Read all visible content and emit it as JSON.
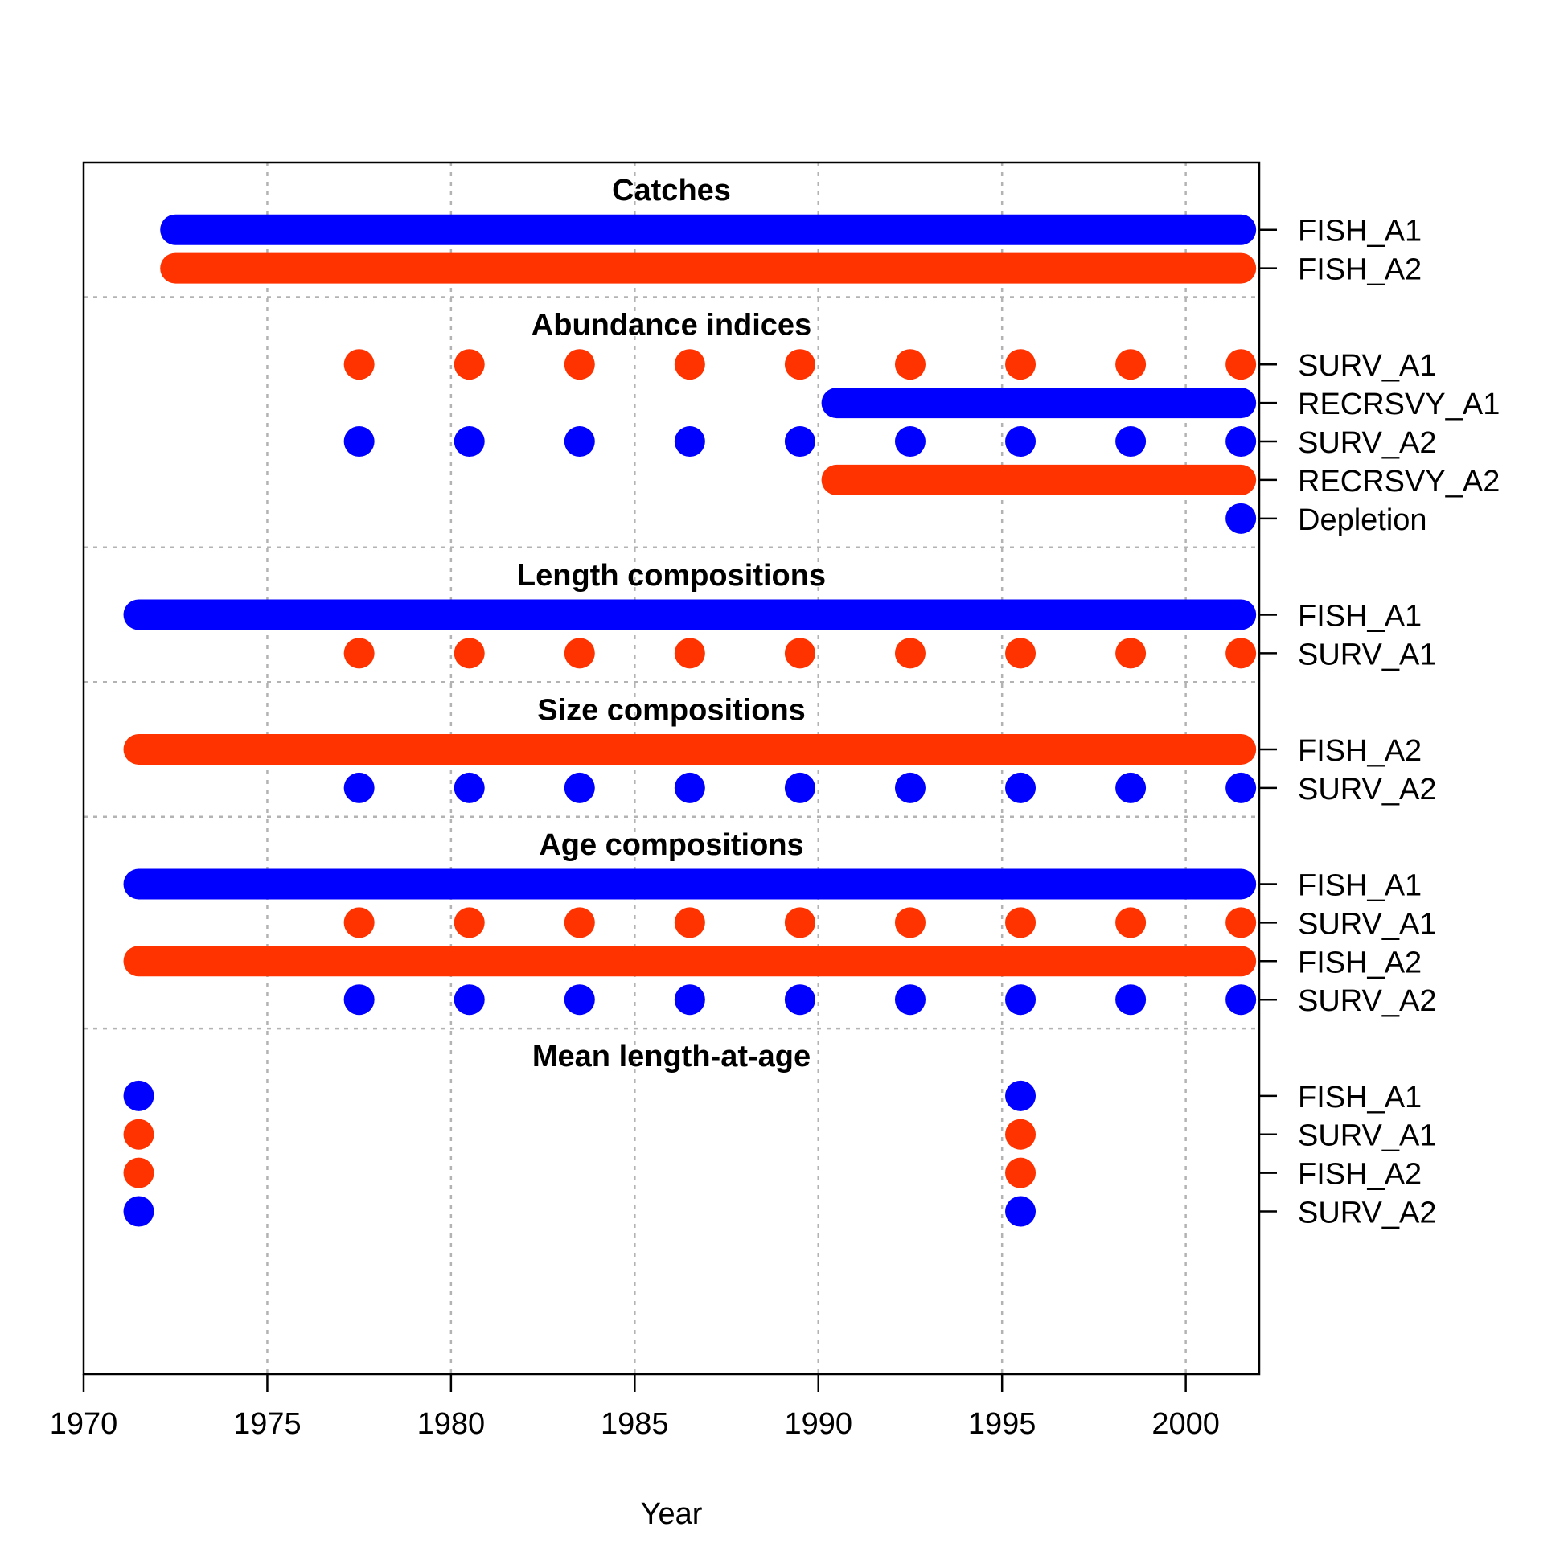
{
  "chart_data": {
    "type": "timeline",
    "xlabel": "Year",
    "xlim": [
      1970,
      2002
    ],
    "xticks": [
      1970,
      1975,
      1980,
      1985,
      1990,
      1995,
      2000
    ],
    "colors": {
      "blue": "#0000ff",
      "red": "#ff3300"
    },
    "sections": [
      {
        "title": "Catches",
        "rows": [
          {
            "label": "FISH_A1",
            "color": "blue",
            "years": [
              1972,
              1973,
              1974,
              1975,
              1976,
              1977,
              1978,
              1979,
              1980,
              1981,
              1982,
              1983,
              1984,
              1985,
              1986,
              1987,
              1988,
              1989,
              1990,
              1991,
              1992,
              1993,
              1994,
              1995,
              1996,
              1997,
              1998,
              1999,
              2000,
              2001
            ]
          },
          {
            "label": "FISH_A2",
            "color": "red",
            "years": [
              1972,
              1973,
              1974,
              1975,
              1976,
              1977,
              1978,
              1979,
              1980,
              1981,
              1982,
              1983,
              1984,
              1985,
              1986,
              1987,
              1988,
              1989,
              1990,
              1991,
              1992,
              1993,
              1994,
              1995,
              1996,
              1997,
              1998,
              1999,
              2000,
              2001
            ]
          }
        ]
      },
      {
        "title": "Abundance indices",
        "rows": [
          {
            "label": "SURV_A1",
            "color": "red",
            "years": [
              1977,
              1980,
              1983,
              1986,
              1989,
              1992,
              1995,
              1998,
              2001
            ]
          },
          {
            "label": "RECRSVY_A1",
            "color": "blue",
            "years": [
              1990,
              1991,
              1992,
              1993,
              1994,
              1995,
              1996,
              1997,
              1998,
              1999,
              2000,
              2001
            ]
          },
          {
            "label": "SURV_A2",
            "color": "blue",
            "years": [
              1977,
              1980,
              1983,
              1986,
              1989,
              1992,
              1995,
              1998,
              2001
            ]
          },
          {
            "label": "RECRSVY_A2",
            "color": "red",
            "years": [
              1990,
              1991,
              1992,
              1993,
              1994,
              1995,
              1996,
              1997,
              1998,
              1999,
              2000,
              2001
            ]
          },
          {
            "label": "Depletion",
            "color": "blue",
            "years": [
              2001
            ]
          }
        ]
      },
      {
        "title": "Length compositions",
        "rows": [
          {
            "label": "FISH_A1",
            "color": "blue",
            "years": [
              1971,
              1972,
              1973,
              1974,
              1975,
              1976,
              1977,
              1978,
              1979,
              1980,
              1981,
              1982,
              1983,
              1984,
              1985,
              1986,
              1987,
              1988,
              1989,
              1990,
              1991,
              1992,
              1993,
              1994,
              1995,
              1996,
              1997,
              1998,
              1999,
              2000,
              2001
            ]
          },
          {
            "label": "SURV_A1",
            "color": "red",
            "years": [
              1977,
              1980,
              1983,
              1986,
              1989,
              1992,
              1995,
              1998,
              2001
            ]
          }
        ]
      },
      {
        "title": "Size compositions",
        "rows": [
          {
            "label": "FISH_A2",
            "color": "red",
            "years": [
              1971,
              1972,
              1973,
              1974,
              1975,
              1976,
              1977,
              1978,
              1979,
              1980,
              1981,
              1982,
              1983,
              1984,
              1985,
              1986,
              1987,
              1988,
              1989,
              1990,
              1991,
              1992,
              1993,
              1994,
              1995,
              1996,
              1997,
              1998,
              1999,
              2000,
              2001
            ]
          },
          {
            "label": "SURV_A2",
            "color": "blue",
            "years": [
              1977,
              1980,
              1983,
              1986,
              1989,
              1992,
              1995,
              1998,
              2001
            ]
          }
        ]
      },
      {
        "title": "Age compositions",
        "rows": [
          {
            "label": "FISH_A1",
            "color": "blue",
            "years": [
              1971,
              1972,
              1973,
              1974,
              1975,
              1976,
              1977,
              1978,
              1979,
              1980,
              1981,
              1982,
              1983,
              1984,
              1985,
              1986,
              1987,
              1988,
              1989,
              1990,
              1991,
              1992,
              1993,
              1994,
              1995,
              1996,
              1997,
              1998,
              1999,
              2000,
              2001
            ]
          },
          {
            "label": "SURV_A1",
            "color": "red",
            "years": [
              1977,
              1980,
              1983,
              1986,
              1989,
              1992,
              1995,
              1998,
              2001
            ]
          },
          {
            "label": "FISH_A2",
            "color": "red",
            "years": [
              1971,
              1972,
              1973,
              1974,
              1975,
              1976,
              1977,
              1978,
              1979,
              1980,
              1981,
              1982,
              1983,
              1984,
              1985,
              1986,
              1987,
              1988,
              1989,
              1990,
              1991,
              1992,
              1993,
              1994,
              1995,
              1996,
              1997,
              1998,
              1999,
              2000,
              2001
            ]
          },
          {
            "label": "SURV_A2",
            "color": "blue",
            "years": [
              1977,
              1980,
              1983,
              1986,
              1989,
              1992,
              1995,
              1998,
              2001
            ]
          }
        ]
      },
      {
        "title": "Mean length-at-age",
        "rows": [
          {
            "label": "FISH_A1",
            "color": "blue",
            "years": [
              1971,
              1995
            ]
          },
          {
            "label": "SURV_A1",
            "color": "red",
            "years": [
              1971,
              1995
            ]
          },
          {
            "label": "FISH_A2",
            "color": "red",
            "years": [
              1971,
              1995
            ]
          },
          {
            "label": "SURV_A2",
            "color": "blue",
            "years": [
              1971,
              1995
            ]
          }
        ]
      }
    ]
  }
}
